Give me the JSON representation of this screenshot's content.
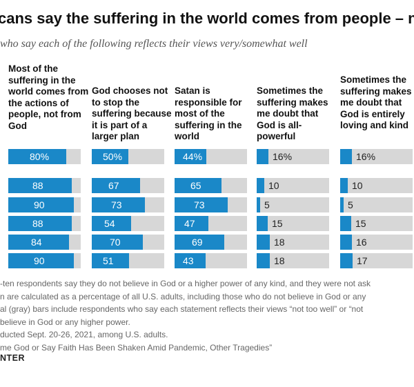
{
  "chart_data": {
    "type": "bar",
    "title": "cans say the suffering in the world comes from people – not",
    "subtitle": "who say each of the following reflects their views very/somewhat well",
    "columns": [
      "Most of the suffering in the world comes from the actions of people, not from God",
      "God chooses not to stop the suffering because it is part of a larger plan",
      "Satan is responsible for most of the suffering in the world",
      "Sometimes the suffering makes me doubt that God is all-powerful",
      "Sometimes the suffering makes me doubt that God is entirely loving and kind"
    ],
    "series": [
      {
        "values": [
          80,
          50,
          44,
          16,
          16
        ],
        "labels": [
          "80%",
          "50%",
          "44%",
          "16%",
          "16%"
        ]
      },
      {
        "values": [
          88,
          67,
          65,
          10,
          10
        ],
        "labels": [
          "88",
          "67",
          "65",
          "10",
          "10"
        ]
      },
      {
        "values": [
          90,
          73,
          73,
          5,
          5
        ],
        "labels": [
          "90",
          "73",
          "73",
          "5",
          "5"
        ]
      },
      {
        "values": [
          88,
          54,
          47,
          15,
          15
        ],
        "labels": [
          "88",
          "54",
          "47",
          "15",
          "15"
        ]
      },
      {
        "values": [
          84,
          70,
          69,
          18,
          16
        ],
        "labels": [
          "84",
          "70",
          "69",
          "18",
          "16"
        ]
      },
      {
        "values": [
          90,
          51,
          43,
          18,
          17
        ],
        "labels": [
          "90",
          "51",
          "43",
          "18",
          "17"
        ]
      }
    ],
    "ylim": [
      0,
      100
    ],
    "colors": {
      "fill": "#1a88c8",
      "track": "#d7d7d7"
    }
  },
  "notes": [
    "-ten respondents say they do not believe in God or a higher power of any kind, and they were not ask",
    "n are calculated as a percentage of all U.S. adults, including those who do not believe in God or any",
    "al (gray) bars include respondents who say each statement reflects their views “not too well” or “not",
    "believe in God or any higher power.",
    "ducted Sept. 20-26, 2021, among U.S. adults.",
    "me God or Say Faith Has Been Shaken Amid Pandemic, Other Tragedies”"
  ],
  "brand": "NTER"
}
